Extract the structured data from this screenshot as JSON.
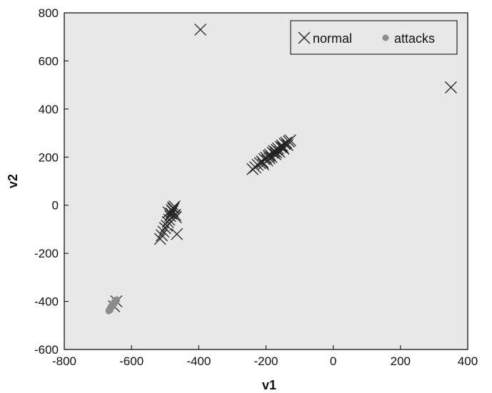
{
  "chart_data": {
    "type": "scatter",
    "title": "",
    "xlabel": "v1",
    "ylabel": "v2",
    "xlim": [
      -800,
      400
    ],
    "ylim": [
      -600,
      800
    ],
    "xticks": [
      -800,
      -600,
      -400,
      -200,
      0,
      200,
      400
    ],
    "yticks": [
      -600,
      -400,
      -200,
      0,
      200,
      400,
      600,
      800
    ],
    "grid": false,
    "legend_position": "top-right",
    "plot_background": "#e8e8e8",
    "series": [
      {
        "name": "normal",
        "marker": "x",
        "color": "#222222",
        "points": [
          [
            -395,
            730
          ],
          [
            350,
            490
          ],
          [
            -240,
            150
          ],
          [
            -232,
            158
          ],
          [
            -225,
            168
          ],
          [
            -218,
            175
          ],
          [
            -212,
            182
          ],
          [
            -208,
            170
          ],
          [
            -205,
            192
          ],
          [
            -200,
            198
          ],
          [
            -196,
            186
          ],
          [
            -192,
            205
          ],
          [
            -188,
            210
          ],
          [
            -184,
            200
          ],
          [
            -180,
            218
          ],
          [
            -176,
            225
          ],
          [
            -172,
            212
          ],
          [
            -168,
            230
          ],
          [
            -164,
            236
          ],
          [
            -160,
            222
          ],
          [
            -156,
            242
          ],
          [
            -152,
            248
          ],
          [
            -148,
            235
          ],
          [
            -144,
            255
          ],
          [
            -140,
            260
          ],
          [
            -136,
            250
          ],
          [
            -132,
            265
          ],
          [
            -128,
            270
          ],
          [
            -210,
            178
          ],
          [
            -190,
            195
          ],
          [
            -170,
            220
          ],
          [
            -150,
            240
          ],
          [
            -515,
            -140
          ],
          [
            -510,
            -125
          ],
          [
            -505,
            -110
          ],
          [
            -500,
            -95
          ],
          [
            -495,
            -85
          ],
          [
            -492,
            -70
          ],
          [
            -488,
            -60
          ],
          [
            -485,
            -45
          ],
          [
            -482,
            -35
          ],
          [
            -478,
            -25
          ],
          [
            -475,
            -15
          ],
          [
            -472,
            -5
          ],
          [
            -470,
            -40
          ],
          [
            -468,
            -50
          ],
          [
            -480,
            -20
          ],
          [
            -490,
            -30
          ],
          [
            -465,
            -120
          ],
          [
            -476,
            -10
          ],
          [
            -645,
            -400
          ],
          [
            -652,
            -420
          ]
        ]
      },
      {
        "name": "attacks",
        "marker": "dot",
        "color": "#8c8c8c",
        "points": [
          [
            -668,
            -440
          ],
          [
            -666,
            -434
          ],
          [
            -664,
            -428
          ],
          [
            -662,
            -424
          ],
          [
            -660,
            -420
          ],
          [
            -658,
            -416
          ],
          [
            -656,
            -412
          ],
          [
            -654,
            -408
          ],
          [
            -652,
            -404
          ],
          [
            -650,
            -400
          ],
          [
            -648,
            -396
          ],
          [
            -646,
            -394
          ],
          [
            -644,
            -392
          ],
          [
            -663,
            -436
          ],
          [
            -657,
            -422
          ],
          [
            -651,
            -410
          ],
          [
            -645,
            -398
          ]
        ]
      }
    ]
  }
}
